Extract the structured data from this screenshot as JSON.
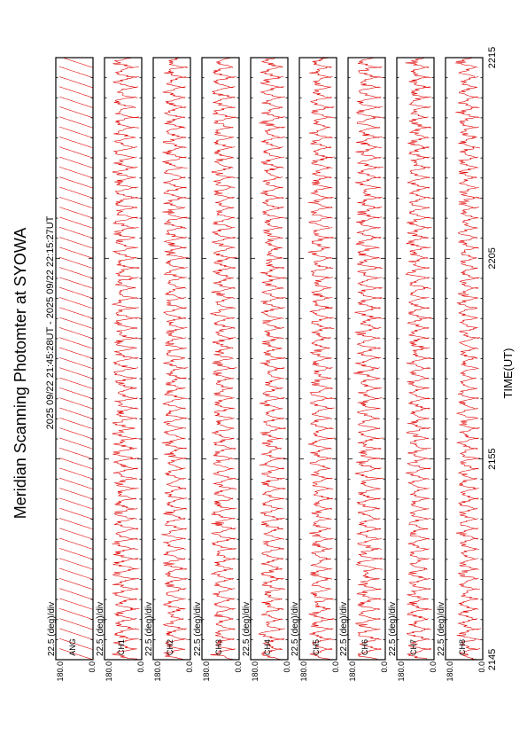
{
  "title": "Meridian Scanning Photomter at SYOWA",
  "time_range": "2025 09/22 21:45:28UT - 2025 09/22 22:15:27UT",
  "xlabel": "TIME(UT)",
  "x_ticks": [
    "2145",
    "2155",
    "2205",
    "2215"
  ],
  "panel_scale_label": "22.5 (deg)/div",
  "y_top": "180.0",
  "y_bottom": "0.0",
  "trace_color": "#e00000",
  "chart_data": {
    "type": "line",
    "title": "Meridian Scanning Photomter at SYOWA",
    "xlabel": "TIME(UT)",
    "ylabel": "",
    "x_range": [
      "2145",
      "2215"
    ],
    "ylim": [
      0,
      180
    ],
    "y_scale": "22.5 (deg)/div",
    "panels": [
      {
        "channel": "ANG",
        "pattern": "sawtooth",
        "amplitude": 0.9
      },
      {
        "channel": "CH1",
        "pattern": "arc",
        "amplitude": 0.55
      },
      {
        "channel": "CH2",
        "pattern": "arc",
        "amplitude": 0.5
      },
      {
        "channel": "CH3",
        "pattern": "arc",
        "amplitude": 0.5
      },
      {
        "channel": "CH4",
        "pattern": "arc",
        "amplitude": 0.5
      },
      {
        "channel": "CH5",
        "pattern": "arc",
        "amplitude": 0.5
      },
      {
        "channel": "CH6",
        "pattern": "arc",
        "amplitude": 0.55
      },
      {
        "channel": "CH7",
        "pattern": "arc",
        "amplitude": 0.5
      },
      {
        "channel": "CH8",
        "pattern": "arc",
        "amplitude": 0.45
      }
    ],
    "grid": false,
    "legend": "none"
  }
}
